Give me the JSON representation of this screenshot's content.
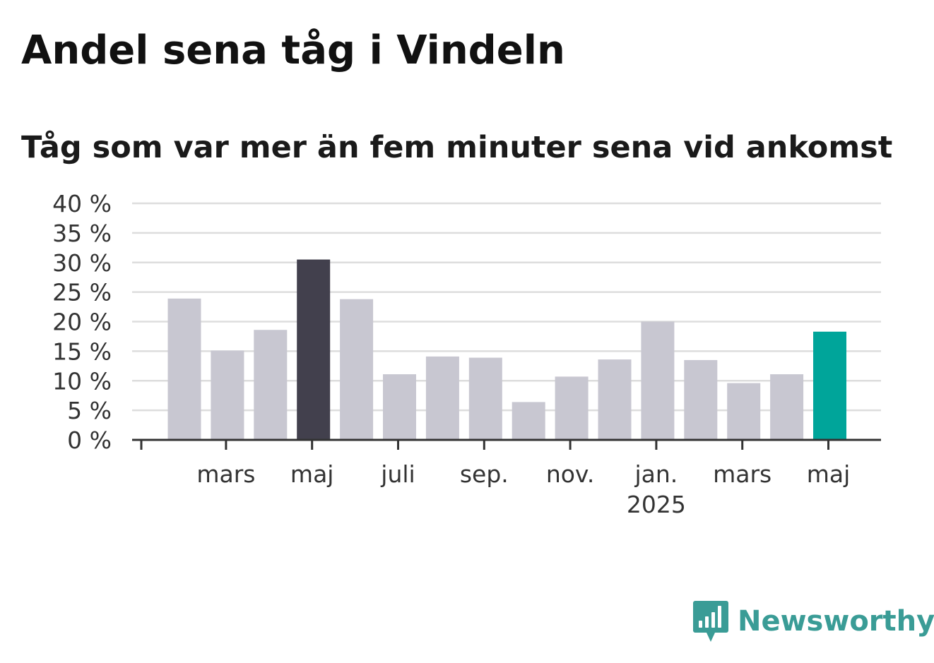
{
  "header": {
    "title": "Andel sena tåg i Vindeln",
    "subtitle": "Tåg som var mer än fem minuter sena vid ankomst"
  },
  "brand": {
    "name": "Newsworthy",
    "logo_icon": "newsworthy-bar-chart-icon",
    "color": "#3a9c96"
  },
  "colors": {
    "bar_default": "#c8c7d1",
    "bar_highlight": "#42404d",
    "bar_latest": "#00a59a",
    "gridline": "#dddddd",
    "axis": "#333333"
  },
  "chart_data": {
    "type": "bar",
    "title": "Andel sena tåg i Vindeln",
    "subtitle": "Tåg som var mer än fem minuter sena vid ankomst",
    "xlabel": "",
    "ylabel": "",
    "ylim": [
      0,
      40
    ],
    "y_ticks": [
      0,
      5,
      10,
      15,
      20,
      25,
      30,
      35,
      40
    ],
    "y_tick_suffix": " %",
    "grid": true,
    "legend": "none",
    "categories": [
      "2024-02",
      "2024-03",
      "2024-04",
      "2024-05",
      "2024-06",
      "2024-07",
      "2024-08",
      "2024-09",
      "2024-10",
      "2024-11",
      "2024-12",
      "2025-01",
      "2025-02",
      "2025-03",
      "2025-04",
      "2025-05"
    ],
    "values": [
      23.9,
      15.1,
      18.6,
      30.5,
      23.8,
      11.1,
      14.1,
      13.9,
      6.4,
      10.7,
      13.6,
      20.0,
      13.5,
      9.6,
      11.1,
      18.3
    ],
    "highlight": {
      "max": "2024-05",
      "latest": "2025-05"
    },
    "x_tick_labels": [
      {
        "category": "2024-03",
        "label": "mars",
        "sublabel": ""
      },
      {
        "category": "2024-05",
        "label": "maj",
        "sublabel": ""
      },
      {
        "category": "2024-07",
        "label": "juli",
        "sublabel": ""
      },
      {
        "category": "2024-09",
        "label": "sep.",
        "sublabel": ""
      },
      {
        "category": "2024-11",
        "label": "nov.",
        "sublabel": ""
      },
      {
        "category": "2025-01",
        "label": "jan.",
        "sublabel": "2025"
      },
      {
        "category": "2025-03",
        "label": "mars",
        "sublabel": ""
      },
      {
        "category": "2025-05",
        "label": "maj",
        "sublabel": ""
      }
    ]
  }
}
